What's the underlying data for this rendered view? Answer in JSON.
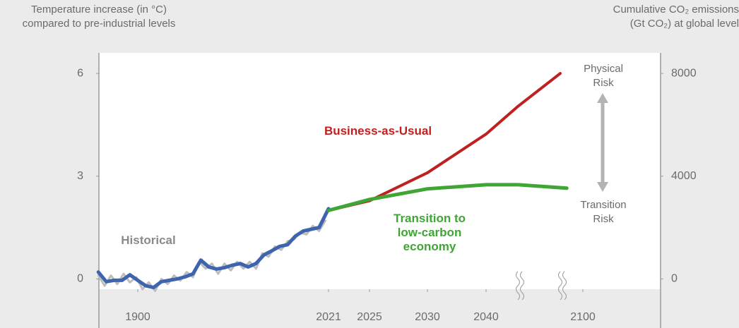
{
  "chart_data": {
    "type": "line",
    "y_label": [
      "Temperature increase (in °C)",
      "compared to pre-industrial levels"
    ],
    "y2_label": [
      "Cumulative CO₂ emissions",
      "(Gt CO₂) at global level"
    ],
    "xticks": [
      1900,
      2021,
      2025,
      2030,
      2040,
      2100
    ],
    "ylim": [
      -0.3,
      6.6
    ],
    "yticks": [
      0,
      3,
      6
    ],
    "y2lim": [
      -400,
      8800
    ],
    "y2ticks": [
      0,
      4000,
      8000
    ],
    "series": [
      {
        "color": "#bdbdbd",
        "x": [
          1875,
          1879,
          1883,
          1887,
          1891,
          1895,
          1899,
          1903,
          1907,
          1911,
          1915,
          1919,
          1923,
          1927,
          1931,
          1935,
          1939,
          1943,
          1947,
          1951,
          1955,
          1959,
          1963,
          1967,
          1971,
          1975,
          1979,
          1983,
          1987,
          1991,
          1995,
          1999,
          2003,
          2007,
          2011,
          2015,
          2019
        ],
        "values": [
          0.1,
          -0.2,
          0.1,
          -0.15,
          0.15,
          -0.1,
          0.05,
          -0.3,
          -0.1,
          -0.35,
          0.0,
          -0.15,
          0.1,
          -0.05,
          0.2,
          0.05,
          0.5,
          0.3,
          0.45,
          0.15,
          0.45,
          0.25,
          0.5,
          0.3,
          0.5,
          0.3,
          0.75,
          0.65,
          0.95,
          0.85,
          1.1,
          1.15,
          1.35,
          1.3,
          1.55,
          1.4,
          1.7
        ]
      },
      {
        "name": "Historical",
        "color": "#3f64ae",
        "x": [
          1875,
          1880,
          1885,
          1890,
          1895,
          1900,
          1905,
          1910,
          1915,
          1920,
          1925,
          1930,
          1935,
          1940,
          1945,
          1950,
          1955,
          1960,
          1965,
          1970,
          1975,
          1980,
          1985,
          1990,
          1995,
          2000,
          2005,
          2010,
          2015,
          2021
        ],
        "values": [
          0.2,
          -0.08,
          -0.04,
          -0.04,
          0.12,
          -0.04,
          -0.2,
          -0.25,
          -0.08,
          -0.04,
          0.0,
          0.06,
          0.15,
          0.55,
          0.35,
          0.29,
          0.33,
          0.4,
          0.45,
          0.35,
          0.45,
          0.7,
          0.82,
          0.95,
          1.0,
          1.25,
          1.4,
          1.45,
          1.5,
          2.05
        ]
      },
      {
        "name": "Business-as-Usual",
        "color": "#c0201f",
        "x": [
          2021,
          2025,
          2030,
          2040,
          2060,
          2086
        ],
        "values": [
          2.0,
          2.28,
          3.1,
          4.23,
          5.05,
          6.0
        ]
      },
      {
        "name": "Transition to low-carbon economy",
        "color": "#3fa535",
        "x": [
          2021,
          2025,
          2030,
          2040,
          2060,
          2090
        ],
        "values": [
          2.0,
          2.32,
          2.63,
          2.75,
          2.75,
          2.65
        ]
      }
    ],
    "annotations": [
      "Physical Risk",
      "Transition Risk"
    ]
  }
}
